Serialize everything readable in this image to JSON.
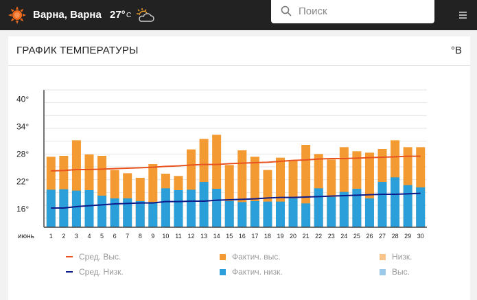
{
  "header": {
    "city": "Варна, Варна",
    "temperature": "27°",
    "temperature_unit": "C"
  },
  "search": {
    "placeholder": "Поиск"
  },
  "card": {
    "title": "ГРАФИК ТЕМПЕРАТУРЫ",
    "unit_toggle": "°В"
  },
  "colors": {
    "actual_high": "#f39a32",
    "actual_low": "#2b9fd9",
    "avg_high_line": "#e8531f",
    "avg_low_line": "#0c1a8a",
    "record_low": "#f9c48c",
    "record_high": "#9cc9e8"
  },
  "chart_data": {
    "type": "bar",
    "month_label": "июнь",
    "categories": [
      "1",
      "2",
      "3",
      "4",
      "5",
      "6",
      "7",
      "8",
      "9",
      "10",
      "11",
      "12",
      "13",
      "14",
      "15",
      "16",
      "17",
      "18",
      "19",
      "20",
      "21",
      "22",
      "23",
      "24",
      "25",
      "26",
      "27",
      "28",
      "29",
      "30"
    ],
    "ytick_labels": [
      "16°",
      "22°",
      "28°",
      "34°",
      "40°"
    ],
    "yticks": [
      16,
      22,
      28,
      34,
      40
    ],
    "ylim": [
      12,
      42
    ],
    "series": [
      {
        "name": "Фактич. выс.",
        "values": [
          27.4,
          27.6,
          31.0,
          27.9,
          27.6,
          24.5,
          23.8,
          22.8,
          25.8,
          23.7,
          23.2,
          29.0,
          31.3,
          32.2,
          25.6,
          28.8,
          27.4,
          24.5,
          27.2,
          26.5,
          30.0,
          28.0,
          26.8,
          29.5,
          28.6,
          28.3,
          29.1,
          31.0,
          29.5,
          29.5
        ]
      },
      {
        "name": "Фактич. низк.",
        "values": [
          20.2,
          20.3,
          20.0,
          20.1,
          18.9,
          18.3,
          18.3,
          17.7,
          17.5,
          20.5,
          20.1,
          20.2,
          21.9,
          20.4,
          17.7,
          17.5,
          17.7,
          17.6,
          17.6,
          18.3,
          17.2,
          20.5,
          18.6,
          19.7,
          20.4,
          18.3,
          21.9,
          22.9,
          21.2,
          20.7
        ]
      },
      {
        "name": "Сред. Выс.",
        "values": [
          24.3,
          24.4,
          24.6,
          24.6,
          24.7,
          24.8,
          24.9,
          25.0,
          25.1,
          25.3,
          25.4,
          25.6,
          25.7,
          25.7,
          25.9,
          26.0,
          26.1,
          26.2,
          26.4,
          26.6,
          26.7,
          26.9,
          27.0,
          27.0,
          27.1,
          27.2,
          27.3,
          27.4,
          27.5,
          27.5
        ]
      },
      {
        "name": "Сред. Низк.",
        "values": [
          16.2,
          16.2,
          16.5,
          16.7,
          16.9,
          17.1,
          17.2,
          17.3,
          17.3,
          17.6,
          17.6,
          17.7,
          17.7,
          17.9,
          18.0,
          18.1,
          18.2,
          18.4,
          18.5,
          18.5,
          18.6,
          18.7,
          18.8,
          18.9,
          19.0,
          19.1,
          19.2,
          19.2,
          19.3,
          19.4
        ]
      }
    ],
    "legend": [
      {
        "label": "Сред. Выс.",
        "kind": "line",
        "color": "#e8531f"
      },
      {
        "label": "Фактич. выс.",
        "kind": "box",
        "color": "#f39a32"
      },
      {
        "label": "Низк.",
        "kind": "box",
        "color": "#f9c48c"
      },
      {
        "label": "Сред. Низк.",
        "kind": "line",
        "color": "#0c1a8a"
      },
      {
        "label": "Фактич. низк.",
        "kind": "box",
        "color": "#2b9fd9"
      },
      {
        "label": "Выс.",
        "kind": "box",
        "color": "#9cc9e8"
      }
    ],
    "grid": true,
    "legend_position": "bottom"
  }
}
